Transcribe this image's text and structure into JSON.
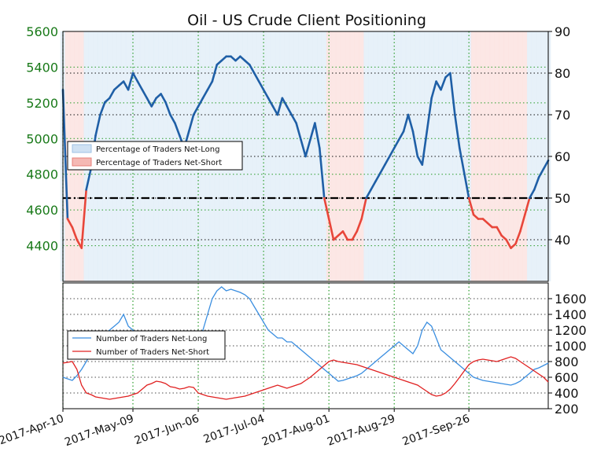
{
  "chart_data": [
    {
      "type": "line",
      "panel": "top",
      "title": "Oil - US Crude Client Positioning",
      "xlabel": "",
      "left_ylabel": "",
      "right_ylabel": "",
      "x_tick_labels": [
        "2017-Apr-10",
        "2017-May-09",
        "2017-Jun-06",
        "2017-Jul-04",
        "2017-Aug-01",
        "2017-Aug-29",
        "2017-Sep-26"
      ],
      "left_axis": {
        "ylim": [
          4200,
          5600
        ],
        "ticks": [
          4400,
          4600,
          4800,
          5000,
          5200,
          5400,
          5600
        ],
        "color": "#1a7a1a"
      },
      "right_axis": {
        "ylim": [
          30,
          90
        ],
        "ticks": [
          40,
          50,
          60,
          70,
          80,
          90
        ]
      },
      "reference_line": {
        "value": 50,
        "axis": "right",
        "style": "dash-dot"
      },
      "grid": true,
      "legend": {
        "placement": "center-left",
        "entries": [
          "Percentage of Traders Net-Long",
          "Percentage of Traders Net-Short"
        ]
      },
      "series": [
        {
          "name": "Percentage of Traders Net-Long",
          "axis": "right",
          "color_long": "#1f5fa6",
          "color_short": "#e8463a",
          "values": [
            76,
            45,
            43,
            40,
            38,
            52,
            57,
            65,
            70,
            73,
            74,
            76,
            77,
            78,
            76,
            80,
            78,
            76,
            74,
            72,
            74,
            75,
            73,
            70,
            68,
            65,
            62,
            66,
            70,
            72,
            74,
            76,
            78,
            82,
            83,
            84,
            84,
            83,
            84,
            83,
            82,
            80,
            78,
            76,
            74,
            72,
            70,
            74,
            72,
            70,
            68,
            64,
            60,
            64,
            68,
            62,
            50,
            45,
            40,
            41,
            42,
            40,
            40,
            42,
            45,
            50,
            52,
            54,
            56,
            58,
            60,
            62,
            64,
            66,
            70,
            66,
            60,
            58,
            66,
            74,
            78,
            76,
            79,
            80,
            70,
            62,
            56,
            50,
            46,
            45,
            45,
            44,
            43,
            43,
            41,
            40,
            38,
            39,
            42,
            46,
            50,
            52,
            55,
            57,
            59
          ]
        }
      ]
    },
    {
      "type": "line",
      "panel": "bottom",
      "xlabel": "",
      "ylabel": "",
      "ylim": [
        200,
        1800
      ],
      "ticks": [
        200,
        400,
        600,
        800,
        1000,
        1200,
        1400,
        1600
      ],
      "grid": true,
      "legend": {
        "placement": "center-left",
        "entries": [
          "Number of Traders Net-Long",
          "Number of Traders Net-Short"
        ]
      },
      "series": [
        {
          "name": "Number of Traders Net-Long",
          "color": "#3a8ee0",
          "values": [
            600,
            580,
            560,
            620,
            700,
            800,
            900,
            1000,
            1100,
            1150,
            1200,
            1250,
            1300,
            1400,
            1250,
            1200,
            1150,
            1100,
            1000,
            950,
            900,
            850,
            900,
            1000,
            950,
            900,
            850,
            900,
            1000,
            1100,
            1200,
            1400,
            1600,
            1700,
            1750,
            1700,
            1720,
            1700,
            1680,
            1650,
            1600,
            1500,
            1400,
            1300,
            1200,
            1150,
            1100,
            1100,
            1050,
            1050,
            1000,
            950,
            900,
            850,
            800,
            750,
            700,
            650,
            600,
            550,
            560,
            580,
            600,
            620,
            650,
            700,
            750,
            800,
            850,
            900,
            950,
            1000,
            1050,
            1000,
            950,
            900,
            1000,
            1200,
            1300,
            1250,
            1100,
            950,
            900,
            850,
            800,
            750,
            700,
            650,
            600,
            580,
            560,
            550,
            540,
            530,
            520,
            510,
            500,
            520,
            550,
            600,
            650,
            700,
            720,
            750,
            780
          ]
        },
        {
          "name": "Number of Traders Net-Short",
          "color": "#e02020",
          "values": [
            780,
            790,
            800,
            700,
            500,
            400,
            380,
            350,
            340,
            330,
            320,
            330,
            340,
            350,
            360,
            380,
            400,
            450,
            500,
            520,
            550,
            540,
            520,
            480,
            470,
            450,
            460,
            480,
            470,
            400,
            380,
            360,
            350,
            340,
            330,
            320,
            330,
            340,
            350,
            360,
            380,
            400,
            420,
            440,
            460,
            480,
            500,
            480,
            460,
            480,
            500,
            520,
            560,
            600,
            650,
            700,
            750,
            800,
            820,
            800,
            790,
            780,
            770,
            760,
            740,
            720,
            700,
            680,
            660,
            640,
            620,
            600,
            580,
            560,
            540,
            520,
            500,
            460,
            420,
            380,
            360,
            370,
            400,
            450,
            520,
            600,
            680,
            760,
            800,
            820,
            830,
            820,
            810,
            800,
            820,
            840,
            860,
            840,
            800,
            760,
            720,
            680,
            640,
            600,
            540
          ]
        }
      ]
    }
  ]
}
